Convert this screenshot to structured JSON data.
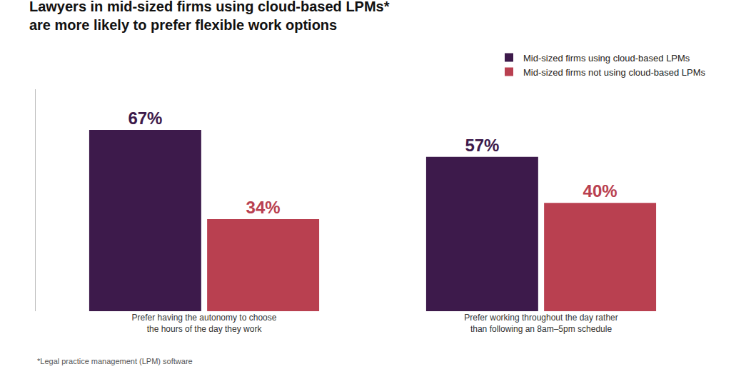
{
  "chart_data": {
    "type": "bar",
    "title": "Lawyers in mid-sized firms using cloud-based LPMs*\nare more likely to prefer flexible work options",
    "categories": [
      "Prefer having the autonomy to choose\nthe hours of the day they work",
      "Prefer working throughout the day rather\nthan following an 8am–5pm schedule"
    ],
    "series": [
      {
        "name": "Mid-sized firms using cloud-based LPMs",
        "color": "#3d1a4b",
        "values": [
          67,
          57
        ],
        "value_labels": [
          "67%",
          "57%"
        ]
      },
      {
        "name": "Mid-sized firms not using cloud-based LPMs",
        "color": "#b94050",
        "values": [
          34,
          40
        ],
        "value_labels": [
          "34%",
          "40%"
        ]
      }
    ],
    "ylim": [
      0,
      82
    ],
    "data_labels": true,
    "tick_labels": "x",
    "grid": false,
    "legend": "top right",
    "annotations": [
      "*Legal practice management (LPM) software"
    ]
  }
}
